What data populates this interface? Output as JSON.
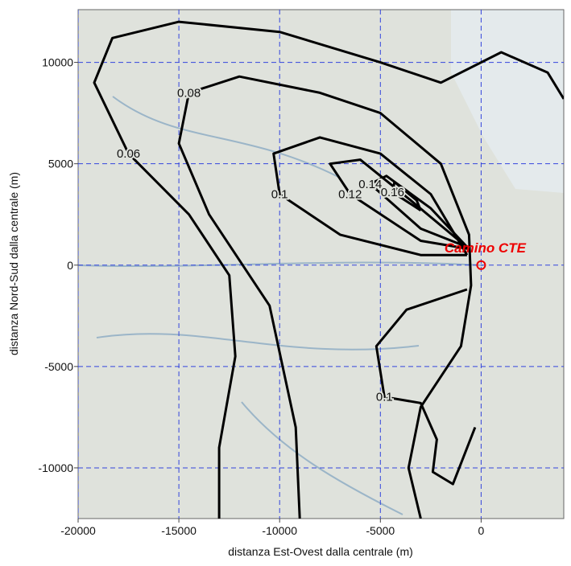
{
  "chart_data": {
    "type": "contour",
    "xlabel": "distanza Est-Ovest dalla centrale (m)",
    "ylabel": "distanza Nord-Sud dalla centrale (m)",
    "xlim": [
      -20000,
      4100
    ],
    "ylim": [
      -12500,
      12600
    ],
    "xticks": [
      -20000,
      -15000,
      -10000,
      -5000,
      0
    ],
    "yticks": [
      -10000,
      -5000,
      0,
      5000,
      10000
    ],
    "grid": true,
    "color": "#000000",
    "contours": [
      {
        "level": 0.06,
        "x": [
          -13000,
          -13000,
          -12200,
          -12500,
          -14500,
          -17500,
          -19200,
          -18300,
          -15000,
          -10000,
          -5000,
          -2000,
          1000,
          3300,
          4100
        ],
        "y": [
          -12500,
          -9000,
          -4500,
          -500,
          2500,
          5500,
          9000,
          11200,
          12000,
          11500,
          10000,
          9000,
          10500,
          9500,
          8200
        ]
      },
      {
        "level": 0.08,
        "x": [
          -9000,
          -9200,
          -10500,
          -13500,
          -15000,
          -14500,
          -12000,
          -8000,
          -5000,
          -2000,
          -600,
          -500,
          -1000,
          -3000,
          -3600,
          -3000
        ],
        "y": [
          -12500,
          -8000,
          -2000,
          2500,
          6000,
          8500,
          9300,
          8500,
          7500,
          5000,
          1500,
          -1000,
          -4000,
          -7000,
          -10000,
          -12500
        ]
      },
      {
        "level": 0.1,
        "x": [
          -700,
          -3000,
          -7000,
          -10000,
          -10300,
          -8000,
          -5000,
          -2500,
          -700
        ],
        "y": [
          500,
          500,
          1500,
          3500,
          5500,
          6300,
          5500,
          3500,
          500
        ]
      },
      {
        "level": 0.1,
        "x": [
          -700,
          -3700,
          -5200,
          -4800,
          -3000,
          -2200,
          -2400,
          -1400,
          -300
        ],
        "y": [
          -1200,
          -2200,
          -4000,
          -6500,
          -6800,
          -8600,
          -10200,
          -10800,
          -8000
        ]
      },
      {
        "level": 0.12,
        "x": [
          -600,
          -3000,
          -6500,
          -7500,
          -6000,
          -3500,
          -600
        ],
        "y": [
          800,
          1200,
          3500,
          5000,
          5200,
          3200,
          800
        ]
      },
      {
        "level": 0.14,
        "x": [
          -700,
          -3000,
          -5500,
          -4700,
          -2500,
          -700
        ],
        "y": [
          900,
          1800,
          4000,
          4400,
          2800,
          900
        ]
      },
      {
        "level": 0.16,
        "x": [
          -3000,
          -4400,
          -4300,
          -3200,
          -3000
        ],
        "y": [
          2700,
          3600,
          4100,
          3200,
          2700
        ]
      }
    ],
    "annotations": [
      {
        "text": "Camino CTE",
        "x": 0,
        "y": 0
      }
    ]
  }
}
